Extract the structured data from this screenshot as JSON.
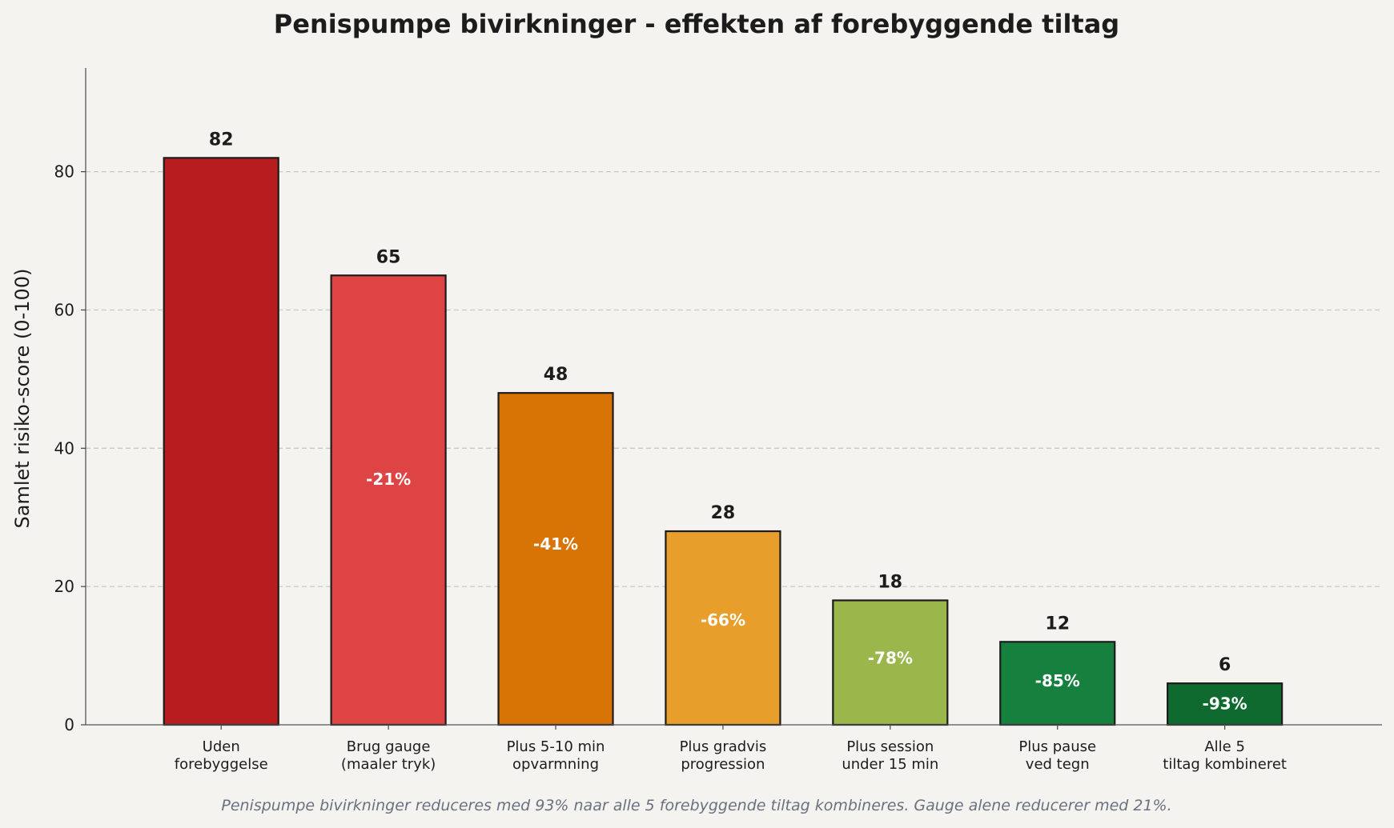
{
  "chart_data": {
    "type": "bar",
    "title": "Penispumpe bivirkninger - effekten af forebyggende tiltag",
    "xlabel": "",
    "ylabel": "Samlet risiko-score (0-100)",
    "ylim": [
      0,
      95
    ],
    "yticks": [
      0,
      20,
      40,
      60,
      80
    ],
    "grid": "horizontal dashed",
    "categories": [
      [
        "Uden",
        "forebyggelse"
      ],
      [
        "Brug gauge",
        "(maaler tryk)"
      ],
      [
        "Plus 5-10 min",
        "opvarmning"
      ],
      [
        "Plus gradvis",
        "progression"
      ],
      [
        "Plus session",
        "under 15 min"
      ],
      [
        "Plus pause",
        "ved tegn"
      ],
      [
        "Alle 5",
        "tiltag kombineret"
      ]
    ],
    "values": [
      82,
      65,
      48,
      28,
      18,
      12,
      6
    ],
    "value_labels": [
      "82",
      "65",
      "48",
      "28",
      "18",
      "12",
      "6"
    ],
    "reduction_labels": [
      "",
      "-21%",
      "-41%",
      "-66%",
      "-78%",
      "-85%",
      "-93%"
    ],
    "colors": [
      "#b71c1e",
      "#de4444",
      "#d87406",
      "#e89e2b",
      "#9bb64a",
      "#16813e",
      "#0f6a30"
    ],
    "footnote": "Penispumpe bivirkninger reduceres med 93% naar alle 5 forebyggende tiltag kombineres. Gauge alene reducerer med 21%."
  }
}
